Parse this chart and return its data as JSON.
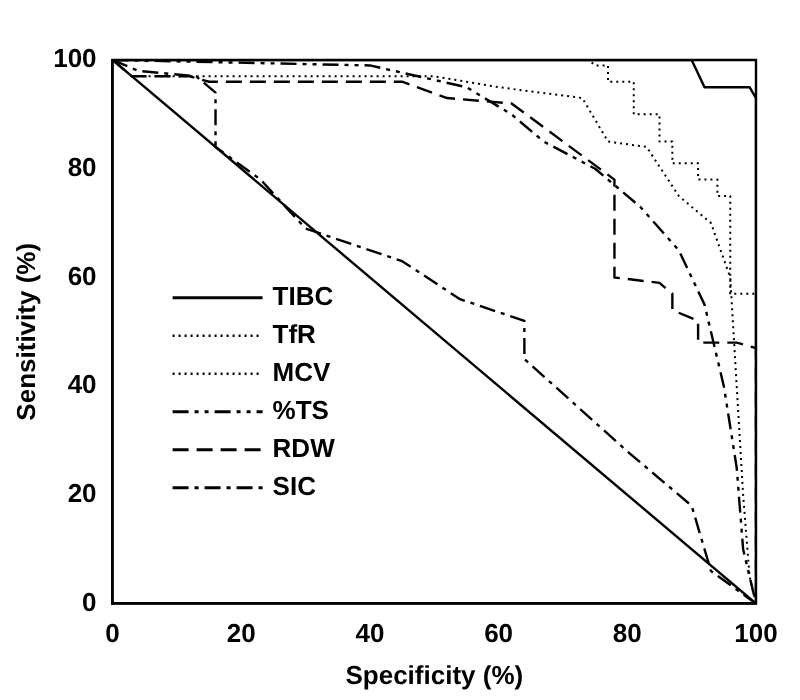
{
  "chart_data": {
    "type": "line",
    "xlabel": "Specificity (%)",
    "ylabel": "Sensitivity (%)",
    "xlim": [
      0,
      100
    ],
    "ylim": [
      0,
      100
    ],
    "xticks": [
      0,
      20,
      40,
      60,
      80,
      100
    ],
    "yticks": [
      0,
      20,
      40,
      60,
      80,
      100
    ],
    "grid": false,
    "legend": "left",
    "marker": "none",
    "series": [
      {
        "name": "TIBC",
        "color": "#000000",
        "line_style": "solid",
        "x": [
          0,
          90,
          92,
          99,
          100,
          100
        ],
        "values": [
          100,
          100,
          95,
          95,
          93,
          0
        ]
      },
      {
        "name": "TfR",
        "color": "#000000",
        "line_style": "dotted",
        "x": [
          0,
          74,
          75,
          77,
          77,
          81,
          81,
          85,
          85,
          87,
          87,
          91,
          91,
          94,
          94,
          96,
          96,
          96,
          100,
          100
        ],
        "values": [
          100,
          100,
          99,
          99,
          96,
          96,
          90,
          90,
          85,
          85,
          81,
          81,
          78,
          78,
          75,
          75,
          72,
          57,
          57,
          0
        ]
      },
      {
        "name": "MCV",
        "color": "#000000",
        "line_style": "dotted",
        "x": [
          0,
          3,
          50,
          60,
          73,
          77,
          83,
          88,
          93,
          96,
          97,
          98,
          99,
          100
        ],
        "values": [
          100,
          97,
          97,
          95,
          93,
          85,
          84,
          75,
          70,
          60,
          40,
          20,
          5,
          0
        ]
      },
      {
        "name": "%TS",
        "color": "#000000",
        "line_style": "dashdotdot",
        "x": [
          0,
          40,
          55,
          62,
          67,
          75,
          82,
          88,
          92,
          95,
          97,
          98,
          100
        ],
        "values": [
          100,
          99,
          95,
          90,
          85,
          80,
          73,
          65,
          55,
          40,
          25,
          10,
          0
        ]
      },
      {
        "name": "RDW",
        "color": "#000000",
        "line_style": "dashed",
        "x": [
          0,
          3,
          12,
          15,
          45,
          52,
          62,
          70,
          78,
          78,
          85,
          87,
          87,
          91,
          91,
          97,
          100,
          100,
          100
        ],
        "values": [
          100,
          97,
          97,
          96,
          96,
          93,
          92,
          85,
          78,
          60,
          59,
          57,
          54,
          52,
          48,
          48,
          47,
          35,
          0
        ]
      },
      {
        "name": "SIC",
        "color": "#000000",
        "line_style": "dashdot",
        "x": [
          0,
          4,
          13,
          16,
          16,
          23,
          30,
          45,
          54,
          64,
          64,
          80,
          90,
          93,
          100
        ],
        "values": [
          100,
          98,
          97,
          94,
          84,
          78,
          69,
          63,
          56,
          52,
          45,
          28,
          18,
          6,
          0
        ]
      },
      {
        "color": "#000000",
        "line_style": "solid",
        "x": [
          0,
          100
        ],
        "values": [
          100,
          0
        ]
      }
    ]
  }
}
